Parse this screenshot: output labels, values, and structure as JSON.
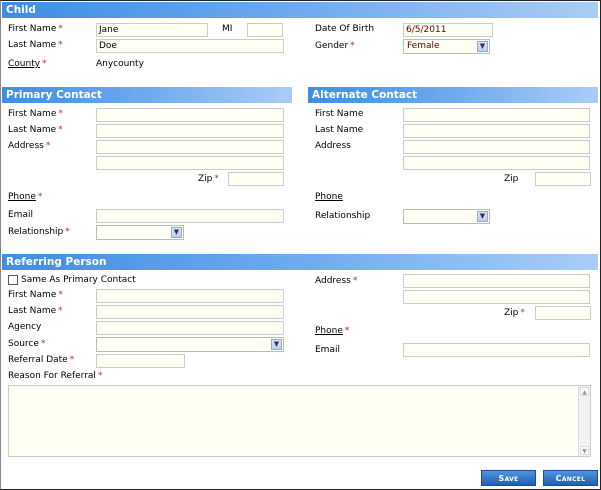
{
  "child": {
    "title": "Child",
    "first_name_label": "First Name",
    "first_name": "Jane",
    "mi_label": "MI",
    "mi": "",
    "last_name_label": "Last Name",
    "last_name": "Doe",
    "county_label": "County",
    "county": "Anycounty",
    "dob_label": "Date Of Birth",
    "dob": "6/5/2011",
    "gender_label": "Gender",
    "gender": "Female"
  },
  "primary": {
    "title": "Primary Contact",
    "first_name_label": "First Name",
    "last_name_label": "Last Name",
    "address_label": "Address",
    "zip_label": "Zip",
    "phone_label": "Phone",
    "email_label": "Email",
    "relationship_label": "Relationship",
    "relationship": ""
  },
  "alternate": {
    "title": "Alternate Contact",
    "first_name_label": "First Name",
    "last_name_label": "Last Name",
    "address_label": "Address",
    "zip_label": "Zip",
    "phone_label": "Phone",
    "relationship_label": "Relationship",
    "relationship": ""
  },
  "referring": {
    "title": "Referring Person",
    "same_as_label": "Same As Primary Contact",
    "same_as_checked": false,
    "first_name_label": "First Name",
    "last_name_label": "Last Name",
    "agency_label": "Agency",
    "source_label": "Source",
    "source": "",
    "referral_date_label": "Referral Date",
    "reason_label": "Reason For Referral",
    "address_label": "Address",
    "zip_label": "Zip",
    "phone_label": "Phone",
    "email_label": "Email"
  },
  "required_marker": "*",
  "actions": {
    "save": "Save",
    "cancel": "Cancel"
  },
  "colors": {
    "header": "#3d8ee3",
    "required": "#b03030",
    "input_bg": "#fffef2"
  }
}
